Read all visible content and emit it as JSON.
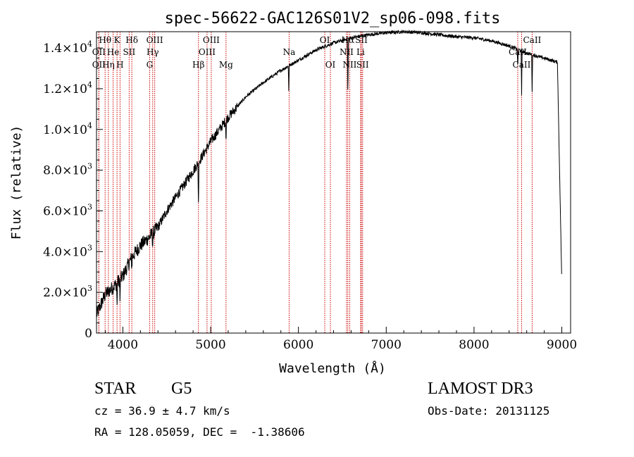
{
  "chart_data": {
    "type": "line",
    "title": "spec-56622-GAC126S01V2_sp06-098.fits",
    "xlabel": "Wavelength (Å)",
    "ylabel": "Flux (relative)",
    "xlim": [
      3700,
      9100
    ],
    "ylim": [
      0,
      14800
    ],
    "xticks": [
      4000,
      5000,
      6000,
      7000,
      8000,
      9000
    ],
    "xtick_labels": [
      "4000",
      "5000",
      "6000",
      "7000",
      "8000",
      "9000"
    ],
    "yticks": [
      {
        "value": 0,
        "mantissa": "0",
        "exponent": ""
      },
      {
        "value": 2000,
        "mantissa": "2.0×10",
        "exponent": "3"
      },
      {
        "value": 4000,
        "mantissa": "4.0×10",
        "exponent": "3"
      },
      {
        "value": 6000,
        "mantissa": "6.0×10",
        "exponent": "3"
      },
      {
        "value": 8000,
        "mantissa": "8.0×10",
        "exponent": "3"
      },
      {
        "value": 10000,
        "mantissa": "1.0×10",
        "exponent": "4"
      },
      {
        "value": 12000,
        "mantissa": "1.2×10",
        "exponent": "4"
      },
      {
        "value": 14000,
        "mantissa": "1.4×10",
        "exponent": "4"
      }
    ],
    "continuum": {
      "x": [
        3700,
        3750,
        3800,
        3900,
        4000,
        4100,
        4200,
        4300,
        4400,
        4500,
        4700,
        4850,
        5000,
        5200,
        5400,
        5600,
        5800,
        6000,
        6200,
        6400,
        6600,
        6800,
        7000,
        7200,
        7400,
        7600,
        7800,
        8000,
        8200,
        8400,
        8600,
        8800,
        8950,
        9000
      ],
      "y": [
        900,
        1400,
        1900,
        2300,
        2800,
        3700,
        4300,
        4700,
        5200,
        6000,
        7300,
        8300,
        9400,
        10600,
        11600,
        12300,
        12900,
        13400,
        13900,
        14250,
        14500,
        14650,
        14750,
        14800,
        14750,
        14650,
        14550,
        14500,
        14350,
        14100,
        13750,
        13500,
        13300,
        2400
      ]
    },
    "absorption_features": [
      {
        "x": 3934,
        "depth": 1200
      },
      {
        "x": 3968,
        "depth": 1200
      },
      {
        "x": 4102,
        "depth": 500
      },
      {
        "x": 4340,
        "depth": 700
      },
      {
        "x": 4861,
        "depth": 2100
      },
      {
        "x": 5175,
        "depth": 1000
      },
      {
        "x": 5890,
        "depth": 1200
      },
      {
        "x": 6563,
        "depth": 3000
      },
      {
        "x": 8498,
        "depth": 1000
      },
      {
        "x": 8542,
        "depth": 2200
      },
      {
        "x": 8662,
        "depth": 1800
      }
    ],
    "spectral_lines": [
      {
        "label": "Hθ",
        "x": 3798,
        "row": 1
      },
      {
        "label": "OII",
        "x": 3727,
        "row": 2
      },
      {
        "label": "OII",
        "x": 3727,
        "row": 3
      },
      {
        "label": "Hη",
        "x": 3835,
        "row": 3
      },
      {
        "label": "He",
        "x": 3889,
        "row": 2
      },
      {
        "label": "K",
        "x": 3934,
        "row": 1
      },
      {
        "label": "H",
        "x": 3968,
        "row": 3
      },
      {
        "label": "SII",
        "x": 4072,
        "row": 2
      },
      {
        "label": "Hδ",
        "x": 4102,
        "row": 1
      },
      {
        "label": "G",
        "x": 4305,
        "row": 3
      },
      {
        "label": "Hγ",
        "x": 4340,
        "row": 2
      },
      {
        "label": "OIII",
        "x": 4363,
        "row": 1
      },
      {
        "label": "Hβ",
        "x": 4861,
        "row": 3
      },
      {
        "label": "OIII",
        "x": 4959,
        "row": 2
      },
      {
        "label": "OIII",
        "x": 5007,
        "row": 1
      },
      {
        "label": "Mg",
        "x": 5175,
        "row": 3
      },
      {
        "label": "Na",
        "x": 5894,
        "row": 2
      },
      {
        "label": "OI",
        "x": 6300,
        "row": 1
      },
      {
        "label": "OI",
        "x": 6364,
        "row": 3
      },
      {
        "label": "NII",
        "x": 6548,
        "row": 2
      },
      {
        "label": "Hα",
        "x": 6563,
        "row": 1
      },
      {
        "label": "NII",
        "x": 6584,
        "row": 3
      },
      {
        "label": "Li",
        "x": 6708,
        "row": 2
      },
      {
        "label": "SII",
        "x": 6717,
        "row": 1
      },
      {
        "label": "SII",
        "x": 6731,
        "row": 3
      },
      {
        "label": "CaII",
        "x": 8498,
        "row": 2
      },
      {
        "label": "CaII",
        "x": 8542,
        "row": 3
      },
      {
        "label": "CaII",
        "x": 8662,
        "row": 1
      }
    ],
    "line_color": "#000000",
    "marker_color": "#cc0000"
  },
  "info": {
    "object_class": "STAR",
    "subclass": "G5",
    "survey": "LAMOST DR3",
    "redshift": "cz = 36.9 ± 4.7 km/s",
    "obs_date": "Obs-Date: 20131125",
    "coords": "RA = 128.05059, DEC =  -1.38606"
  }
}
